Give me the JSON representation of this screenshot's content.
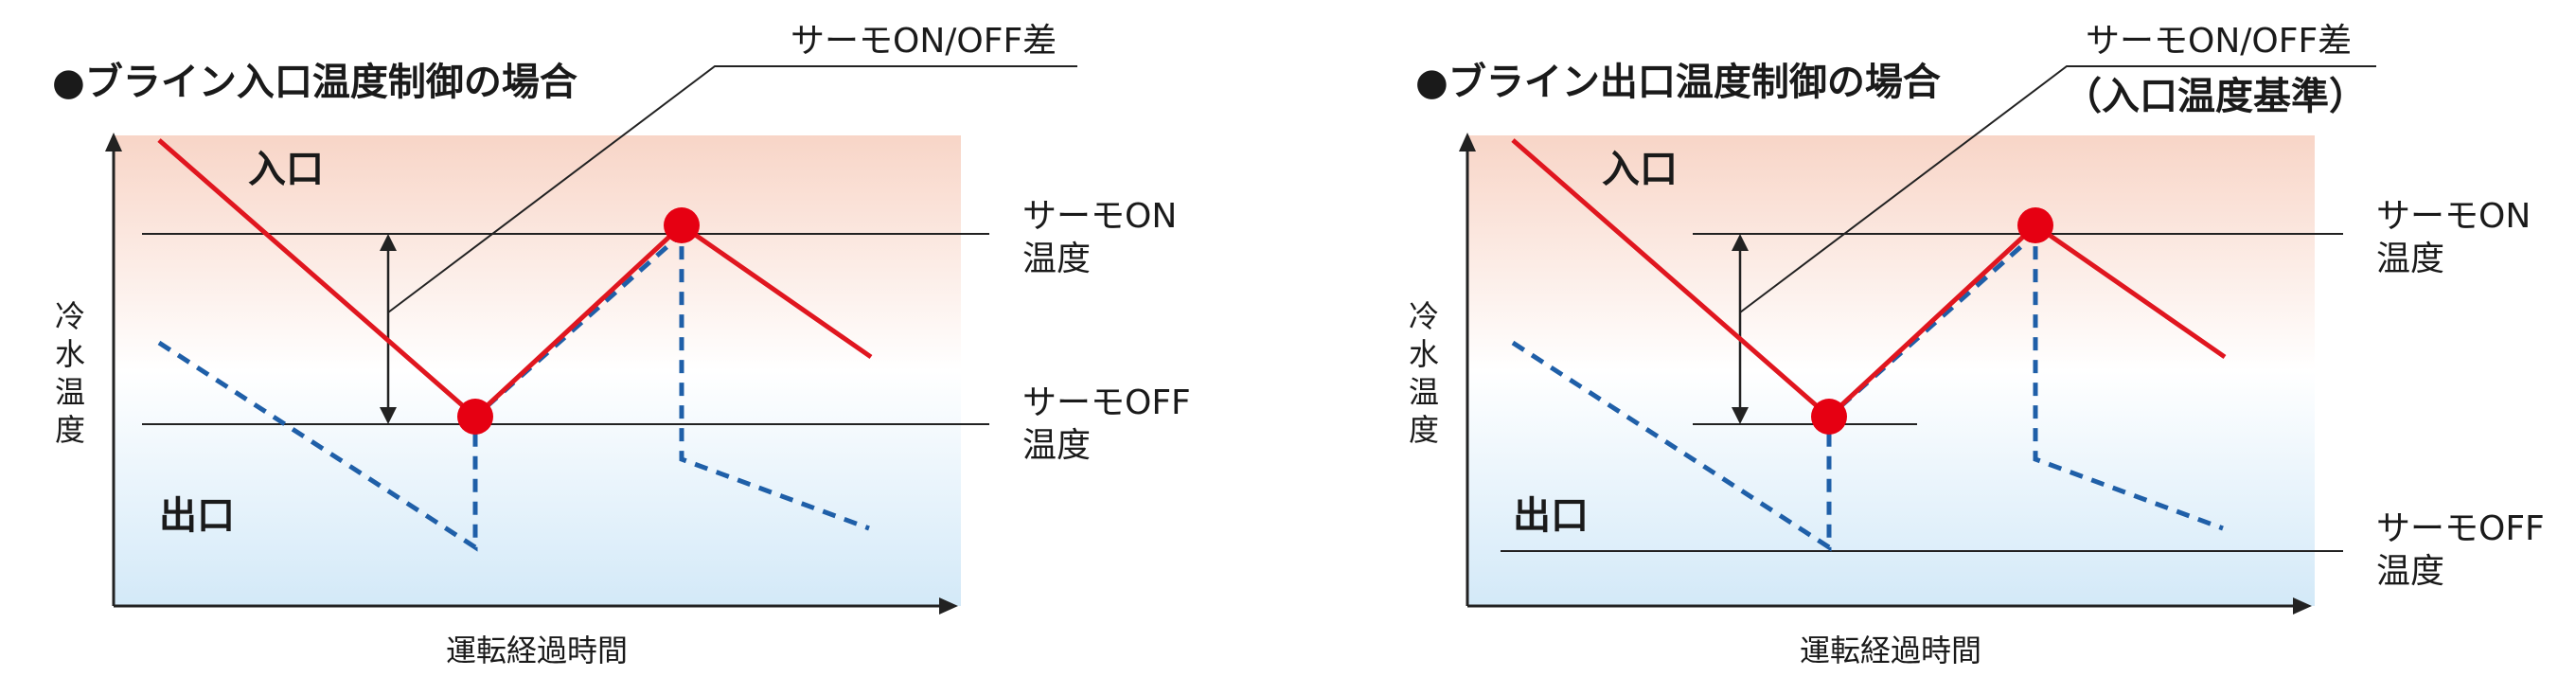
{
  "left_panel": {
    "title": "●ブライン入口温度制御の場合",
    "callout_line1": "サーモON/OFF差",
    "callout_line2": "",
    "zone_inlet": "入口",
    "zone_outlet": "出口",
    "on_label_1": "サーモON",
    "on_label_2": "温度",
    "off_label_1": "サーモOFF",
    "off_label_2": "温度",
    "ylabel_chars": [
      "冷",
      "水",
      "温",
      "度"
    ],
    "xlabel": "運転経過時間"
  },
  "right_panel": {
    "title": "●ブライン出口温度制御の場合",
    "callout_line1": "サーモON/OFF差",
    "callout_line2": "（入口温度基準）",
    "zone_inlet": "入口",
    "zone_outlet": "出口",
    "on_label_1": "サーモON",
    "on_label_2": "温度",
    "off_label_1": "サーモOFF",
    "off_label_2": "温度",
    "ylabel_chars": [
      "冷",
      "水",
      "温",
      "度"
    ],
    "xlabel": "運転経過時間"
  },
  "colors": {
    "inlet_line": "#e0161f",
    "outlet_line": "#1f5fa8",
    "marker": "#e60012",
    "bg_top": "#f8d5c7",
    "bg_bottom": "#d3e9f8",
    "axis": "#222222"
  }
}
